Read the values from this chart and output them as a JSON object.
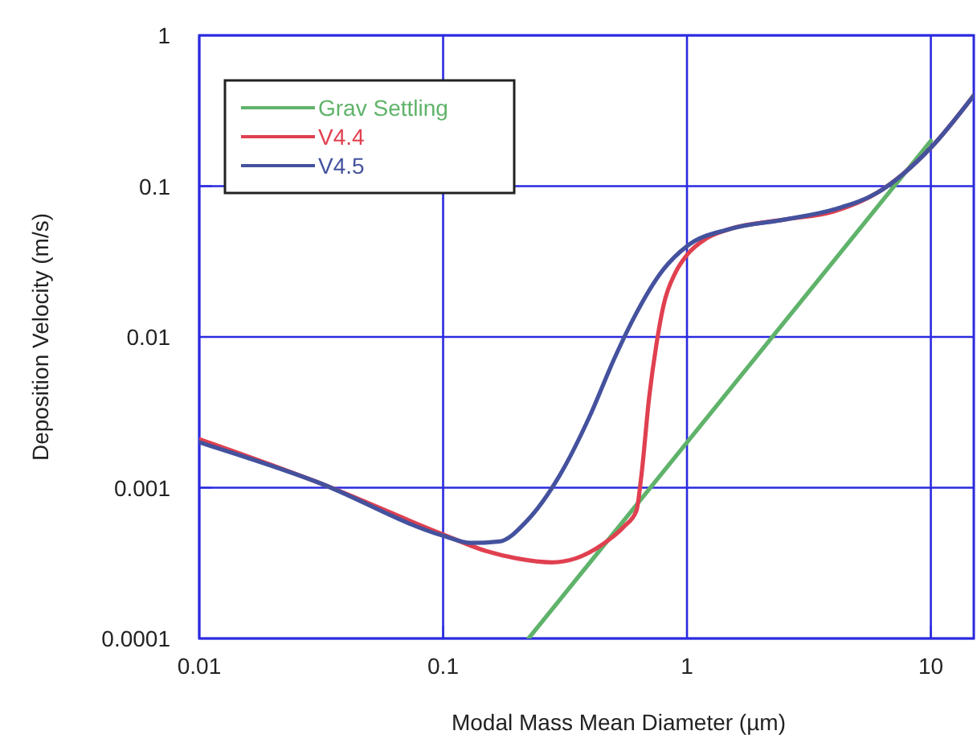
{
  "chart_data": {
    "type": "line",
    "xlabel": "Modal Mass Mean Diameter (µm)",
    "ylabel": "Deposition Velocity (m/s)",
    "log": "xy",
    "grid": true,
    "legend": "top left",
    "line_style": "solid",
    "marker": "none",
    "xlim": [
      0.01,
      15
    ],
    "xticks": [
      0.01,
      0.1,
      1,
      10
    ],
    "ylim": [
      0.0001,
      1
    ],
    "yticks": [
      0.0001,
      0.001,
      0.01,
      0.1,
      1
    ],
    "series": [
      {
        "name": "Grav Settling",
        "color": "#5fb36a",
        "x": [
          0.224,
          10
        ],
        "values": [
          0.0001,
          0.2
        ]
      },
      {
        "name": "V4.4",
        "color": "#e04050",
        "x": [
          0.01,
          0.03,
          0.1,
          0.15,
          0.2,
          0.28,
          0.35,
          0.45,
          0.55,
          0.62,
          0.65,
          0.7,
          0.75,
          0.8,
          0.9,
          1,
          1.2,
          1.5,
          2.5,
          4,
          6,
          10,
          15
        ],
        "values": [
          0.0021,
          0.0011,
          0.00049,
          0.00038,
          0.00034,
          0.00032,
          0.00034,
          0.00042,
          0.00055,
          0.0007,
          0.0012,
          0.004,
          0.009,
          0.016,
          0.027,
          0.035,
          0.045,
          0.052,
          0.06,
          0.068,
          0.09,
          0.18,
          0.4
        ]
      },
      {
        "name": "V4.5",
        "color": "#44529e",
        "x": [
          0.01,
          0.03,
          0.1,
          0.13,
          0.17,
          0.22,
          0.3,
          0.4,
          0.5,
          0.6,
          0.8,
          1,
          1.5,
          2.5,
          4,
          6,
          10,
          15
        ],
        "values": [
          0.002,
          0.0011,
          0.00048,
          0.00043,
          0.00044,
          0.0006,
          0.0012,
          0.003,
          0.007,
          0.013,
          0.028,
          0.04,
          0.052,
          0.06,
          0.07,
          0.09,
          0.18,
          0.4
        ]
      }
    ]
  }
}
